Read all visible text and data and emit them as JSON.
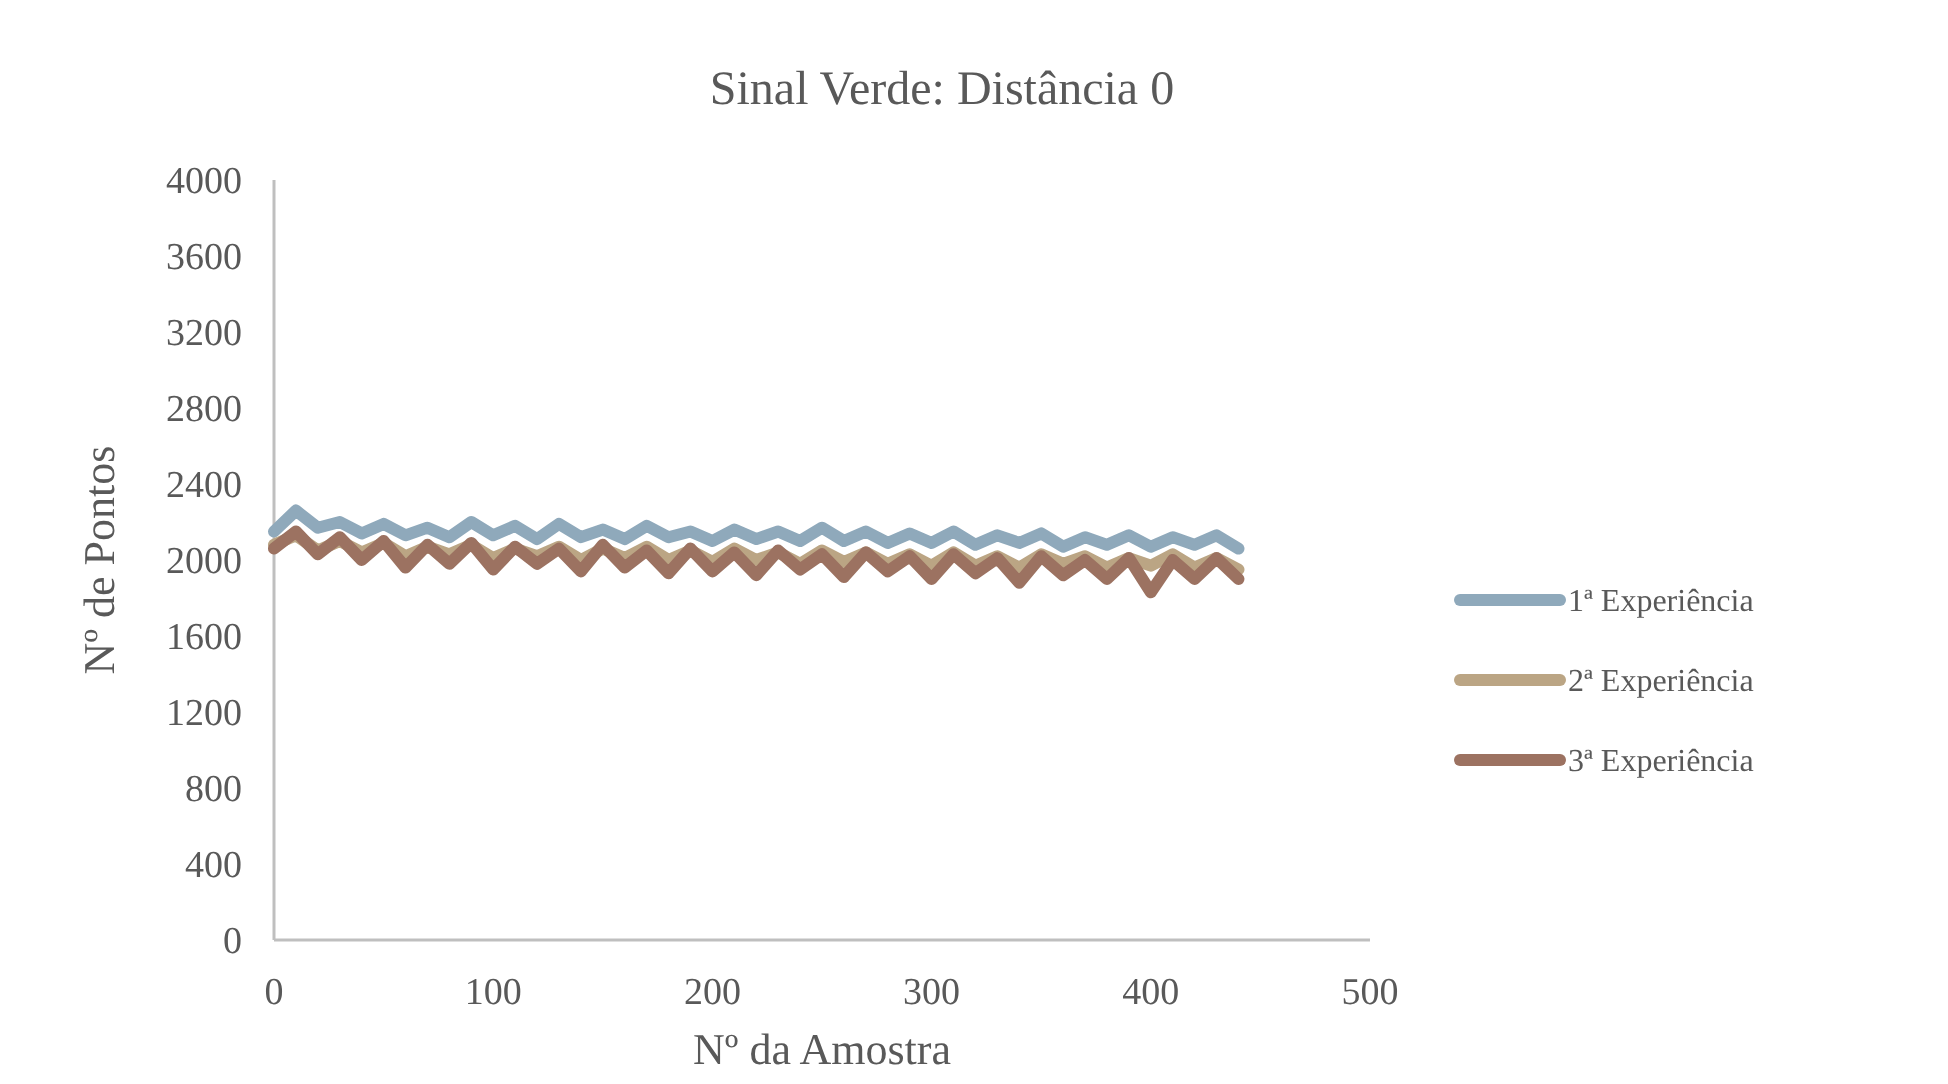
{
  "chart_data": {
    "type": "line",
    "title": "Sinal Verde: Distância 0",
    "xlabel": "Nº da Amostra",
    "ylabel": "Nº de Pontos",
    "x": [
      0,
      10,
      20,
      30,
      40,
      50,
      60,
      70,
      80,
      90,
      100,
      110,
      120,
      130,
      140,
      150,
      160,
      170,
      180,
      190,
      200,
      210,
      220,
      230,
      240,
      250,
      260,
      270,
      280,
      290,
      300,
      310,
      320,
      330,
      340,
      350,
      360,
      370,
      380,
      390,
      400,
      410,
      420,
      430,
      440
    ],
    "xlim": [
      0,
      500
    ],
    "xticks": [
      0,
      100,
      200,
      300,
      400,
      500
    ],
    "ylim": [
      0,
      4000
    ],
    "yticks": [
      0,
      400,
      800,
      1200,
      1600,
      2000,
      2400,
      2800,
      3200,
      3600,
      4000
    ],
    "grid": false,
    "legend": "right",
    "marker": "none",
    "line_style": "solid",
    "series": [
      {
        "name": "1ª Experiência",
        "color": "#8fa9bb",
        "values": [
          2150,
          2260,
          2170,
          2200,
          2140,
          2190,
          2130,
          2170,
          2120,
          2200,
          2130,
          2180,
          2110,
          2190,
          2120,
          2160,
          2110,
          2180,
          2120,
          2150,
          2100,
          2160,
          2110,
          2150,
          2100,
          2170,
          2100,
          2150,
          2090,
          2140,
          2090,
          2150,
          2080,
          2130,
          2090,
          2140,
          2070,
          2120,
          2080,
          2130,
          2070,
          2120,
          2080,
          2130,
          2060
        ]
      },
      {
        "name": "2ª Experiência",
        "color": "#bba584",
        "values": [
          2080,
          2130,
          2050,
          2100,
          2040,
          2090,
          2020,
          2070,
          2030,
          2080,
          2010,
          2060,
          2020,
          2070,
          2000,
          2060,
          2010,
          2070,
          2000,
          2050,
          1990,
          2060,
          2000,
          2040,
          1980,
          2050,
          1990,
          2040,
          1980,
          2030,
          1970,
          2040,
          1970,
          2020,
          1960,
          2030,
          1980,
          2020,
          1960,
          2010,
          1970,
          2030,
          1960,
          2010,
          1950
        ]
      },
      {
        "name": "3ª Experiência",
        "color": "#9c7261",
        "values": [
          2060,
          2150,
          2030,
          2120,
          2000,
          2100,
          1960,
          2080,
          1980,
          2090,
          1950,
          2070,
          1980,
          2060,
          1940,
          2080,
          1960,
          2050,
          1930,
          2060,
          1940,
          2040,
          1920,
          2050,
          1950,
          2030,
          1910,
          2040,
          1940,
          2020,
          1900,
          2030,
          1930,
          2010,
          1880,
          2020,
          1920,
          2000,
          1900,
          2010,
          1830,
          2000,
          1900,
          2010,
          1900
        ]
      }
    ]
  }
}
